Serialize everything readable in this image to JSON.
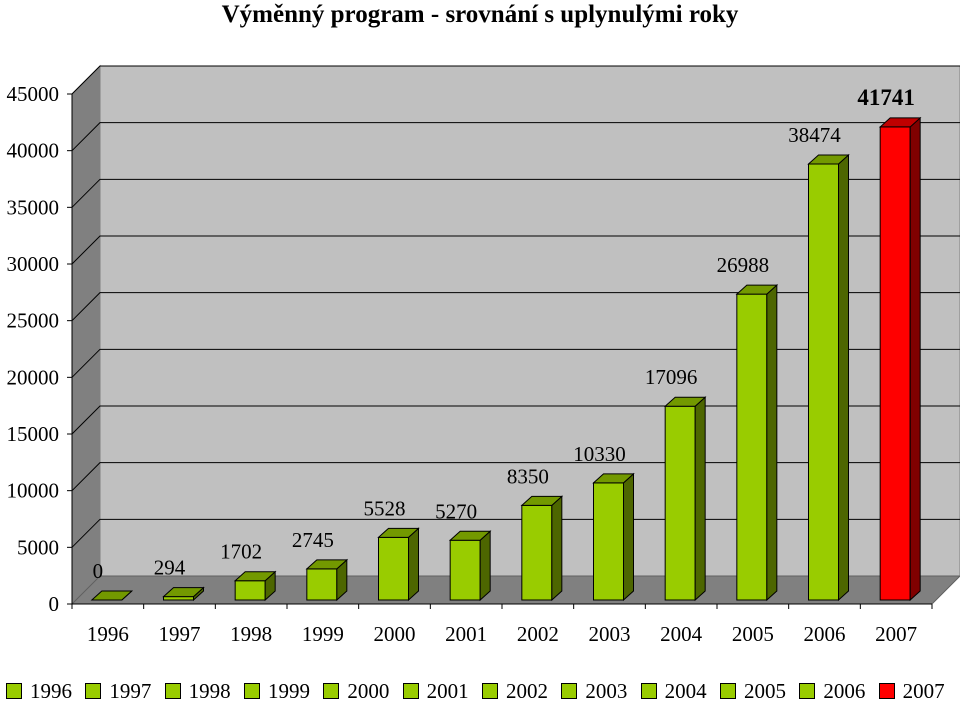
{
  "chart_data": {
    "type": "bar",
    "title": "Výměnný program - srovnání s uplynulými roky",
    "categories": [
      "1996",
      "1997",
      "1998",
      "1999",
      "2000",
      "2001",
      "2002",
      "2003",
      "2004",
      "2005",
      "2006",
      "2007"
    ],
    "series": [
      {
        "values": [
          0,
          294,
          1702,
          2745,
          5528,
          5270,
          8350,
          10330,
          17096,
          26988,
          38474,
          41741
        ]
      }
    ],
    "data_labels": [
      "0",
      "294",
      "1702",
      "2745",
      "5528",
      "5270",
      "8350",
      "10330",
      "17096",
      "26988",
      "38474",
      "41741"
    ],
    "highlight_label": "41741",
    "ylim": [
      0,
      45000
    ],
    "yticks": [
      "0",
      "5000",
      "10000",
      "15000",
      "20000",
      "25000",
      "30000",
      "35000",
      "40000",
      "45000"
    ],
    "grid": true,
    "three_d": true,
    "legend_position": "bottom",
    "colors": {
      "bar": "#99CC00",
      "bar_side": "#4d6600",
      "bar_top": "#739900",
      "highlight": "#FF0000",
      "highlight_side": "#800000",
      "highlight_top": "#bf0000",
      "wall": "#c0c0c0",
      "floor": "#808080",
      "gridline": "#000000"
    }
  }
}
